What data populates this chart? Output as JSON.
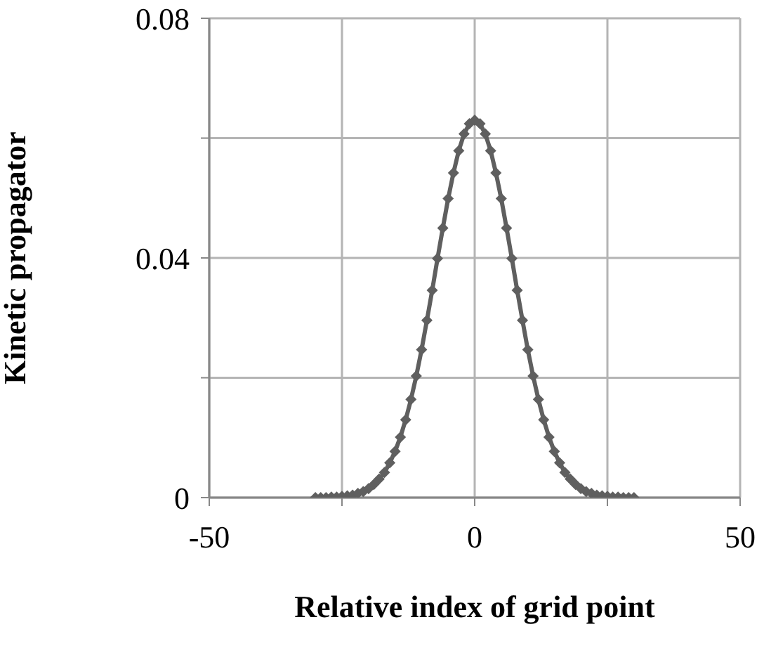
{
  "chart_data": {
    "type": "line",
    "xlabel": "Relative index of grid point",
    "ylabel": "Kinetic propagator",
    "x": [
      -30,
      -29,
      -28,
      -27,
      -26,
      -25,
      -24,
      -23,
      -22,
      -21,
      -20,
      -19,
      -18,
      -17,
      -16,
      -15,
      -14,
      -13,
      -12,
      -11,
      -10,
      -9,
      -8,
      -7,
      -6,
      -5,
      -4,
      -3,
      -2,
      -1,
      0,
      1,
      2,
      3,
      4,
      5,
      6,
      7,
      8,
      9,
      10,
      11,
      12,
      13,
      14,
      15,
      16,
      17,
      18,
      19,
      20,
      21,
      22,
      23,
      24,
      25,
      26,
      27,
      28,
      29,
      30
    ],
    "series": [
      {
        "color": "#5f5f5f",
        "values": [
          0,
          0,
          0,
          0.0001,
          0.0001,
          0.0002,
          0.0003,
          0.0004,
          0.0007,
          0.001,
          0.0015,
          0.0022,
          0.0031,
          0.0042,
          0.0058,
          0.0077,
          0.0101,
          0.013,
          0.0164,
          0.0203,
          0.0247,
          0.0296,
          0.0346,
          0.0399,
          0.045,
          0.0499,
          0.0542,
          0.0579,
          0.0607,
          0.0624,
          0.063,
          0.0624,
          0.0607,
          0.0579,
          0.0542,
          0.0499,
          0.045,
          0.0399,
          0.0346,
          0.0296,
          0.0247,
          0.0203,
          0.0164,
          0.013,
          0.0101,
          0.0077,
          0.0058,
          0.0042,
          0.0031,
          0.0022,
          0.0015,
          0.001,
          0.0007,
          0.0004,
          0.0003,
          0.0002,
          0.0001,
          0.0001,
          0,
          0,
          0
        ]
      }
    ],
    "xlim": [
      -50,
      50
    ],
    "xticks": [
      -50,
      {
        "value": -25,
        "label": null
      },
      0,
      {
        "value": 25,
        "label": null
      },
      50
    ],
    "ylim": [
      0,
      0.08
    ],
    "yticks": [
      0,
      {
        "value": 0.02,
        "label": null
      },
      0.04,
      {
        "value": 0.06,
        "label": null
      },
      0.08
    ],
    "grid": true,
    "marker": "diamond",
    "line_style": "solid"
  }
}
